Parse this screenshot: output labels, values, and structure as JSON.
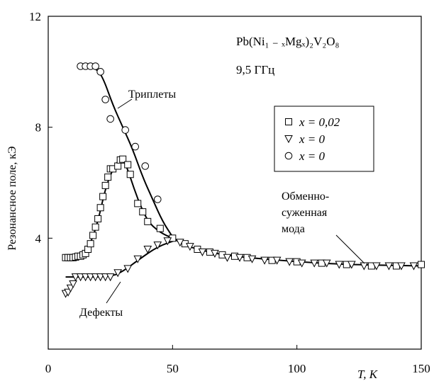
{
  "chart_data": {
    "type": "scatter",
    "title_lines": [
      "Pb(Ni₁ ₋ ₓMgₓ)₂V₂O₈",
      "9,5 ГГц"
    ],
    "xlabel": "T, K",
    "ylabel": "Резонансное поле, кЭ",
    "xlim": [
      0,
      150
    ],
    "ylim": [
      0,
      12
    ],
    "x_ticks": [
      0,
      50,
      100,
      150
    ],
    "y_ticks": [
      4,
      8,
      12
    ],
    "grid": false,
    "legend": {
      "placement": "upper-right",
      "entries": [
        {
          "marker": "square",
          "label": "x = 0,02"
        },
        {
          "marker": "triangle-down",
          "label": "x = 0"
        },
        {
          "marker": "circle",
          "label": "x = 0"
        }
      ]
    },
    "annotations": [
      {
        "text": "Триплеты"
      },
      {
        "text": "Дефекты"
      },
      {
        "lines": [
          "Обменно-",
          "суженная",
          "мода"
        ]
      }
    ],
    "series": [
      {
        "marker": "square",
        "points": [
          [
            7,
            3.3
          ],
          [
            8,
            3.3
          ],
          [
            9,
            3.3
          ],
          [
            10,
            3.3
          ],
          [
            11,
            3.32
          ],
          [
            12,
            3.35
          ],
          [
            13,
            3.35
          ],
          [
            14,
            3.4
          ],
          [
            15,
            3.45
          ],
          [
            16,
            3.6
          ],
          [
            17,
            3.8
          ],
          [
            18,
            4.1
          ],
          [
            19,
            4.4
          ],
          [
            20,
            4.7
          ],
          [
            21,
            5.1
          ],
          [
            22,
            5.5
          ],
          [
            23,
            5.9
          ],
          [
            24,
            6.2
          ],
          [
            25,
            6.5
          ],
          [
            26,
            6.5
          ],
          [
            28,
            6.6
          ],
          [
            29,
            6.82
          ],
          [
            30,
            6.85
          ],
          [
            32,
            6.65
          ],
          [
            33,
            6.3
          ],
          [
            36,
            5.25
          ],
          [
            38,
            4.95
          ],
          [
            40,
            4.6
          ],
          [
            45,
            4.35
          ],
          [
            50,
            4.0
          ],
          [
            55,
            3.8
          ],
          [
            60,
            3.6
          ],
          [
            65,
            3.5
          ],
          [
            70,
            3.4
          ],
          [
            75,
            3.35
          ],
          [
            80,
            3.3
          ],
          [
            90,
            3.2
          ],
          [
            100,
            3.15
          ],
          [
            110,
            3.1
          ],
          [
            120,
            3.05
          ],
          [
            130,
            3.0
          ],
          [
            140,
            3.0
          ],
          [
            150,
            3.05
          ]
        ]
      },
      {
        "marker": "triangle-down",
        "points": [
          [
            7,
            2.0
          ],
          [
            8,
            2.05
          ],
          [
            9,
            2.2
          ],
          [
            10,
            2.35
          ],
          [
            11,
            2.6
          ],
          [
            13,
            2.6
          ],
          [
            15,
            2.6
          ],
          [
            17,
            2.6
          ],
          [
            19,
            2.6
          ],
          [
            21,
            2.6
          ],
          [
            23,
            2.6
          ],
          [
            25,
            2.6
          ],
          [
            28,
            2.75
          ],
          [
            32,
            2.9
          ],
          [
            36,
            3.25
          ],
          [
            40,
            3.6
          ],
          [
            44,
            3.75
          ],
          [
            48,
            3.9
          ],
          [
            53,
            3.85
          ],
          [
            57,
            3.7
          ],
          [
            62,
            3.5
          ],
          [
            67,
            3.45
          ],
          [
            72,
            3.3
          ],
          [
            77,
            3.3
          ],
          [
            82,
            3.25
          ],
          [
            87,
            3.2
          ],
          [
            92,
            3.2
          ],
          [
            97,
            3.15
          ],
          [
            102,
            3.1
          ],
          [
            107,
            3.1
          ],
          [
            112,
            3.1
          ],
          [
            117,
            3.05
          ],
          [
            122,
            3.05
          ],
          [
            127,
            3.0
          ],
          [
            132,
            3.0
          ],
          [
            137,
            3.0
          ],
          [
            142,
            3.0
          ],
          [
            147,
            3.0
          ]
        ]
      },
      {
        "marker": "circle",
        "points": [
          [
            13,
            10.2
          ],
          [
            15,
            10.2
          ],
          [
            17,
            10.2
          ],
          [
            19,
            10.2
          ],
          [
            21,
            10.0
          ],
          [
            23,
            9.0
          ],
          [
            25,
            8.3
          ],
          [
            31,
            7.9
          ],
          [
            35,
            7.3
          ],
          [
            39,
            6.6
          ],
          [
            44,
            5.4
          ]
        ]
      }
    ],
    "fit_curves": [
      {
        "name": "Триплеты",
        "points": [
          [
            13,
            10.2
          ],
          [
            19,
            10.15
          ],
          [
            22,
            9.8
          ],
          [
            26,
            8.8
          ],
          [
            30,
            8.0
          ],
          [
            34,
            7.2
          ],
          [
            38,
            6.2
          ],
          [
            42,
            5.4
          ],
          [
            46,
            4.6
          ],
          [
            50,
            4.05
          ]
        ]
      },
      {
        "name": "Триплеты-x002",
        "points": [
          [
            7,
            3.3
          ],
          [
            11,
            3.35
          ],
          [
            14,
            3.45
          ],
          [
            17,
            3.8
          ],
          [
            20,
            4.6
          ],
          [
            23,
            5.8
          ],
          [
            26,
            6.5
          ],
          [
            29,
            6.9
          ],
          [
            31,
            6.7
          ],
          [
            33,
            6.2
          ],
          [
            36,
            5.4
          ],
          [
            40,
            4.6
          ],
          [
            45,
            4.2
          ],
          [
            50,
            4.0
          ]
        ]
      },
      {
        "name": "Дефекты",
        "points": [
          [
            7,
            2.6
          ],
          [
            25,
            2.6
          ],
          [
            30,
            2.8
          ],
          [
            36,
            3.2
          ],
          [
            44,
            3.7
          ],
          [
            52,
            3.95
          ]
        ]
      },
      {
        "name": "Обменно-суженная мода",
        "points": [
          [
            50,
            4.0
          ],
          [
            55,
            3.75
          ],
          [
            60,
            3.6
          ],
          [
            70,
            3.4
          ],
          [
            80,
            3.3
          ],
          [
            100,
            3.15
          ],
          [
            120,
            3.05
          ],
          [
            150,
            3.0
          ]
        ]
      }
    ]
  }
}
